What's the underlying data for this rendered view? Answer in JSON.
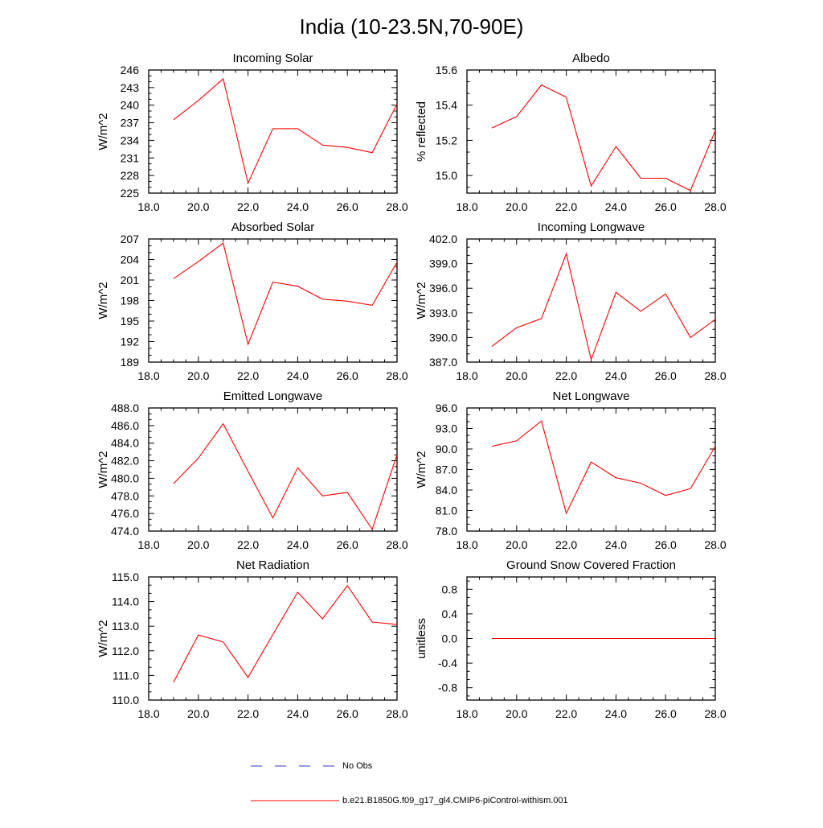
{
  "figure_title": "India (10-23.5N,70-90E)",
  "legend": {
    "entries": [
      {
        "label": "No Obs",
        "color": "#3333cc",
        "dash": "dashed"
      },
      {
        "label": "b.e21.B1850G.f09_g17_gl4.CMIP6-piControl-withism.001",
        "color": "#ff0000",
        "dash": "solid"
      }
    ]
  },
  "chart_data": [
    {
      "type": "line",
      "title": "Incoming Solar",
      "xlabel": "",
      "ylabel": "W/m^2",
      "xlim": [
        18,
        28
      ],
      "ylim": [
        225,
        246
      ],
      "xticks": [
        18,
        20,
        22,
        24,
        26,
        28
      ],
      "xtick_labels": [
        "18.0",
        "20.0",
        "22.0",
        "24.0",
        "26.0",
        "28.0"
      ],
      "yticks": [
        225,
        228,
        231,
        234,
        237,
        240,
        243,
        246
      ],
      "ytick_labels": [
        "225",
        "228",
        "231",
        "234",
        "237",
        "240",
        "243",
        "246"
      ],
      "grid": false,
      "series": [
        {
          "color": "#ff0000",
          "x": [
            19,
            20,
            21,
            22,
            23,
            24,
            25,
            26,
            27,
            28
          ],
          "y": [
            237.5,
            240.8,
            244.5,
            226.7,
            236.0,
            236.0,
            233.2,
            232.8,
            231.9,
            240.2
          ]
        }
      ]
    },
    {
      "type": "line",
      "title": "Albedo",
      "xlabel": "",
      "ylabel": "% reflected",
      "xlim": [
        18,
        28
      ],
      "ylim": [
        14.9,
        15.6
      ],
      "xticks": [
        18,
        20,
        22,
        24,
        26,
        28
      ],
      "xtick_labels": [
        "18.0",
        "20.0",
        "22.0",
        "24.0",
        "26.0",
        "28.0"
      ],
      "yticks": [
        15.0,
        15.2,
        15.4,
        15.6
      ],
      "ytick_labels": [
        "15.0",
        "15.2",
        "15.4",
        "15.6"
      ],
      "grid": false,
      "series": [
        {
          "color": "#ff0000",
          "x": [
            19,
            20,
            21,
            22,
            23,
            24,
            25,
            26,
            27,
            28
          ],
          "y": [
            15.27,
            15.335,
            15.515,
            15.445,
            14.94,
            15.165,
            14.985,
            14.984,
            14.915,
            15.255
          ]
        }
      ]
    },
    {
      "type": "line",
      "title": "Absorbed Solar",
      "xlabel": "",
      "ylabel": "W/m^2",
      "xlim": [
        18,
        28
      ],
      "ylim": [
        189,
        207
      ],
      "xticks": [
        18,
        20,
        22,
        24,
        26,
        28
      ],
      "xtick_labels": [
        "18.0",
        "20.0",
        "22.0",
        "24.0",
        "26.0",
        "28.0"
      ],
      "yticks": [
        189,
        192,
        195,
        198,
        201,
        204,
        207
      ],
      "ytick_labels": [
        "189",
        "192",
        "195",
        "198",
        "201",
        "204",
        "207"
      ],
      "grid": false,
      "series": [
        {
          "color": "#ff0000",
          "x": [
            19,
            20,
            21,
            22,
            23,
            24,
            25,
            26,
            27,
            28
          ],
          "y": [
            201.2,
            203.7,
            206.4,
            191.6,
            200.7,
            200.1,
            198.2,
            197.9,
            197.3,
            203.6
          ]
        }
      ]
    },
    {
      "type": "line",
      "title": "Incoming Longwave",
      "xlabel": "",
      "ylabel": "W/m^2",
      "xlim": [
        18,
        28
      ],
      "ylim": [
        387.0,
        402.0
      ],
      "xticks": [
        18,
        20,
        22,
        24,
        26,
        28
      ],
      "xtick_labels": [
        "18.0",
        "20.0",
        "22.0",
        "24.0",
        "26.0",
        "28.0"
      ],
      "yticks": [
        387,
        390,
        393,
        396,
        399,
        402
      ],
      "ytick_labels": [
        "387.0",
        "390.0",
        "393.0",
        "396.0",
        "399.0",
        "402.0"
      ],
      "grid": false,
      "series": [
        {
          "color": "#ff0000",
          "x": [
            19,
            20,
            21,
            22,
            23,
            24,
            25,
            26,
            27,
            28
          ],
          "y": [
            388.9,
            391.2,
            392.3,
            400.2,
            387.3,
            395.5,
            393.2,
            395.3,
            390.0,
            392.2
          ]
        }
      ]
    },
    {
      "type": "line",
      "title": "Emitted Longwave",
      "xlabel": "",
      "ylabel": "W/m^2",
      "xlim": [
        18,
        28
      ],
      "ylim": [
        474.0,
        488.0
      ],
      "xticks": [
        18,
        20,
        22,
        24,
        26,
        28
      ],
      "xtick_labels": [
        "18.0",
        "20.0",
        "22.0",
        "24.0",
        "26.0",
        "28.0"
      ],
      "yticks": [
        474,
        476,
        478,
        480,
        482,
        484,
        486,
        488
      ],
      "ytick_labels": [
        "474.0",
        "476.0",
        "478.0",
        "480.0",
        "482.0",
        "484.0",
        "486.0",
        "488.0"
      ],
      "grid": false,
      "series": [
        {
          "color": "#ff0000",
          "x": [
            19,
            20,
            21,
            22,
            23,
            24,
            25,
            26,
            27,
            28
          ],
          "y": [
            479.4,
            482.3,
            486.2,
            480.8,
            475.5,
            481.2,
            478.0,
            478.4,
            474.2,
            482.7
          ]
        }
      ]
    },
    {
      "type": "line",
      "title": "Net Longwave",
      "xlabel": "",
      "ylabel": "W/m^2",
      "xlim": [
        18,
        28
      ],
      "ylim": [
        78.0,
        96.0
      ],
      "xticks": [
        18,
        20,
        22,
        24,
        26,
        28
      ],
      "xtick_labels": [
        "18.0",
        "20.0",
        "22.0",
        "24.0",
        "26.0",
        "28.0"
      ],
      "yticks": [
        78,
        81,
        84,
        87,
        90,
        93,
        96
      ],
      "ytick_labels": [
        "78.0",
        "81.0",
        "84.0",
        "87.0",
        "90.0",
        "93.0",
        "96.0"
      ],
      "grid": false,
      "series": [
        {
          "color": "#ff0000",
          "x": [
            19,
            20,
            21,
            22,
            23,
            24,
            25,
            26,
            27,
            28
          ],
          "y": [
            90.4,
            91.2,
            94.1,
            80.6,
            88.1,
            85.8,
            85.0,
            83.2,
            84.2,
            90.4
          ]
        }
      ]
    },
    {
      "type": "line",
      "title": "Net Radiation",
      "xlabel": "",
      "ylabel": "W/m^2",
      "xlim": [
        18,
        28
      ],
      "ylim": [
        110.0,
        115.0
      ],
      "xticks": [
        18,
        20,
        22,
        24,
        26,
        28
      ],
      "xtick_labels": [
        "18.0",
        "20.0",
        "22.0",
        "24.0",
        "26.0",
        "28.0"
      ],
      "yticks": [
        110,
        111,
        112,
        113,
        114,
        115
      ],
      "ytick_labels": [
        "110.0",
        "111.0",
        "112.0",
        "113.0",
        "114.0",
        "115.0"
      ],
      "grid": false,
      "series": [
        {
          "color": "#ff0000",
          "x": [
            19,
            20,
            21,
            22,
            23,
            24,
            25,
            26,
            27,
            28
          ],
          "y": [
            110.72,
            112.64,
            112.36,
            110.92,
            112.66,
            114.38,
            113.3,
            114.65,
            113.17,
            113.07
          ]
        }
      ]
    },
    {
      "type": "line",
      "title": "Ground Snow Covered Fraction",
      "xlabel": "",
      "ylabel": "unitless",
      "xlim": [
        18,
        28
      ],
      "ylim": [
        -1.0,
        1.0
      ],
      "xticks": [
        18,
        20,
        22,
        24,
        26,
        28
      ],
      "xtick_labels": [
        "18.0",
        "20.0",
        "22.0",
        "24.0",
        "26.0",
        "28.0"
      ],
      "yticks": [
        -0.8,
        -0.4,
        0.0,
        0.4,
        0.8
      ],
      "ytick_labels": [
        "-0.8",
        "-0.4",
        "0.0",
        "0.4",
        "0.8"
      ],
      "grid": false,
      "series": [
        {
          "color": "#ff0000",
          "x": [
            19,
            20,
            21,
            22,
            23,
            24,
            25,
            26,
            27,
            28
          ],
          "y": [
            0,
            0,
            0,
            0,
            0,
            0,
            0,
            0,
            0,
            0
          ]
        }
      ]
    }
  ]
}
